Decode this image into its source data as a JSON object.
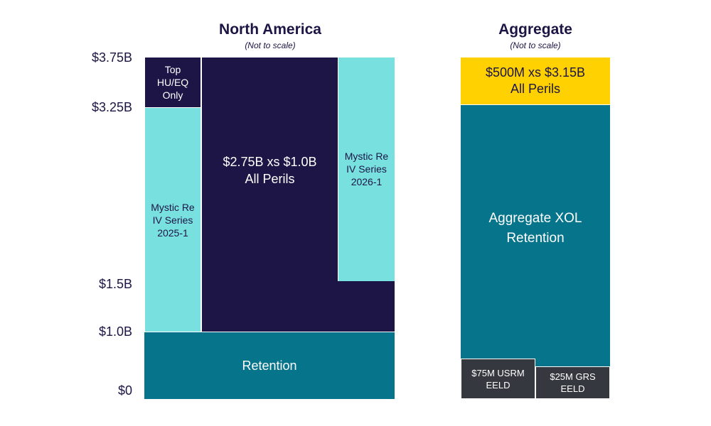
{
  "north_america": {
    "title": "North America",
    "subtitle": "(Not to scale)",
    "y_ticks": [
      "$3.75B",
      "$3.25B",
      "$1.5B",
      "$1.0B",
      "$0"
    ],
    "layers": {
      "top_hu_eq": "Top\nHU/EQ\nOnly",
      "mystic_2025": "Mystic Re\nIV Series\n2025-1",
      "main": "$2.75B xs $1.0B\nAll Perils",
      "mystic_2026": "Mystic Re\nIV Series\n2026-1",
      "retention": "Retention"
    }
  },
  "aggregate": {
    "title": "Aggregate",
    "subtitle": "(Not to scale)",
    "layers": {
      "top": "$500M xs $3.15B\nAll Perils",
      "retention": "Aggregate XOL\nRetention",
      "usrm": "$75M USRM\nEELD",
      "grs": "$25M GRS\nEELD"
    }
  },
  "colors": {
    "navy": "#1c1545",
    "cyan": "#79e0e0",
    "teal": "#06758c",
    "yellow": "#ffd100",
    "gray": "#363840"
  }
}
